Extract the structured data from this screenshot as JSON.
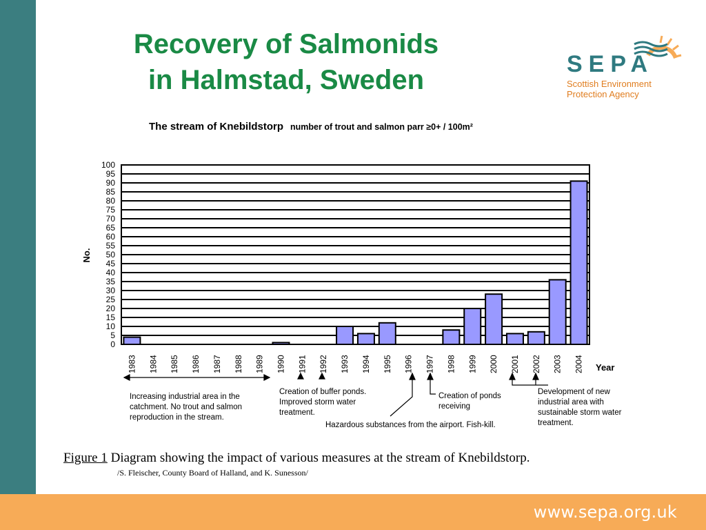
{
  "slide": {
    "title_line1": "Recovery of Salmonids",
    "title_line2": "in Halmstad, Sweden",
    "footer_url": "www.sepa.org.uk"
  },
  "logo": {
    "word": "SEPA",
    "line1": "Scottish Environment",
    "line2": "Protection Agency"
  },
  "colors": {
    "accent_green": "#1a8a45",
    "side_bar": "#3b7e80",
    "footer_bar": "#f7ab57",
    "bar_fill": "#9999ff",
    "logo_teal": "#2f7a80",
    "logo_orange": "#e07d1f"
  },
  "chart_data": {
    "type": "bar",
    "title": "The stream of Knebildstorp",
    "subtitle": "number of trout and salmon parr ≥0+ / 100m²",
    "xlabel": "Year",
    "ylabel": "No.",
    "ylim": [
      0,
      100
    ],
    "yticks": [
      0,
      5,
      10,
      15,
      20,
      25,
      30,
      35,
      40,
      45,
      50,
      55,
      60,
      65,
      70,
      75,
      80,
      85,
      90,
      95,
      100
    ],
    "grid": true,
    "categories": [
      "1983",
      "1984",
      "1985",
      "1986",
      "1987",
      "1988",
      "1989",
      "1990",
      "1991",
      "1992",
      "1993",
      "1994",
      "1995",
      "1996",
      "1997",
      "1998",
      "1999",
      "2000",
      "2001",
      "2002",
      "2003",
      "2004"
    ],
    "values": [
      4,
      0,
      0,
      0,
      0,
      0,
      0,
      1,
      0,
      0,
      10,
      6,
      12,
      0,
      0,
      8,
      20,
      28,
      6,
      7,
      36,
      91
    ],
    "annotations": [
      {
        "text": "Increasing industrial area in the catchment. No trout and salmon reproduction in the stream.",
        "from": "1983",
        "to": "1989"
      },
      {
        "text": "Creation of buffer ponds. Improved storm water treatment.",
        "years": [
          "1991",
          "1992"
        ]
      },
      {
        "text": "Hazardous substances from the airport. Fish-kill.",
        "years": [
          "1996"
        ]
      },
      {
        "text": "Creation of ponds receiving",
        "years": [
          "1997"
        ]
      },
      {
        "text": "Development of new industrial area with sustainable storm water treatment.",
        "years": [
          "2001",
          "2002"
        ]
      }
    ]
  },
  "caption": {
    "label": "Figure 1",
    "text": "Diagram showing the impact of various measures at the stream of Knebildstorp.",
    "credit": "/S. Fleischer, County Board of Halland, and K. Sunesson/"
  }
}
